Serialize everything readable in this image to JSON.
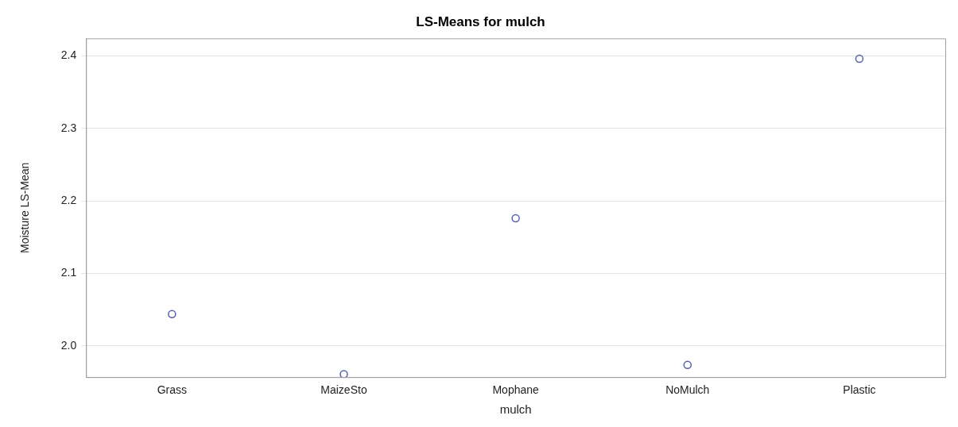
{
  "chart_data": {
    "type": "scatter",
    "title": "LS-Means for mulch",
    "xlabel": "mulch",
    "ylabel": "Moisture LS-Mean",
    "categories": [
      "Grass",
      "MaizeSto",
      "Mophane",
      "NoMulch",
      "Plastic"
    ],
    "series": [
      {
        "color": "#5462a6",
        "values": [
          2.044,
          1.961,
          2.176,
          1.974,
          2.396
        ]
      }
    ],
    "ylim": [
      1.957,
      2.424
    ],
    "yticks": [
      {
        "value": 2.0,
        "label": "2.0"
      },
      {
        "value": 2.1,
        "label": "2.1"
      },
      {
        "value": 2.2,
        "label": "2.2"
      },
      {
        "value": 2.3,
        "label": "2.3"
      },
      {
        "value": 2.4,
        "label": "2.4"
      }
    ],
    "grid": "y",
    "legend": false,
    "marker": "circle"
  }
}
